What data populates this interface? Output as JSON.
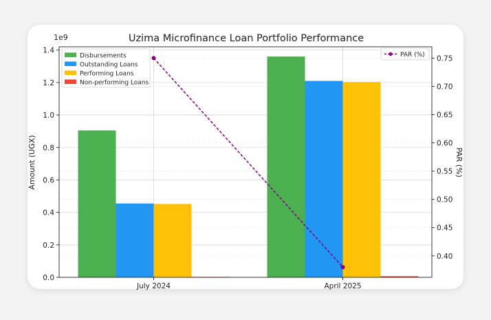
{
  "chart_data": {
    "type": "bar",
    "title": "Uzima Microfinance Loan Portfolio Performance",
    "categories": [
      "July 2024",
      "April 2025"
    ],
    "left_axis": {
      "label": "Amount (UGX)",
      "exponent_label": "1e9",
      "range": [
        0,
        1.42
      ],
      "ticks": [
        0.0,
        0.2,
        0.4,
        0.6,
        0.8,
        1.0,
        1.2,
        1.4
      ],
      "tick_labels": [
        "0.0",
        "0.2",
        "0.4",
        "0.6",
        "0.8",
        "1.0",
        "1.2",
        "1.4"
      ]
    },
    "right_axis": {
      "label": "PAR (%)",
      "range": [
        0.362,
        0.77
      ],
      "ticks": [
        0.4,
        0.45,
        0.5,
        0.55,
        0.6,
        0.65,
        0.7,
        0.75
      ],
      "tick_labels": [
        "0.40",
        "0.45",
        "0.50",
        "0.55",
        "0.60",
        "0.65",
        "0.70",
        "0.75"
      ]
    },
    "series": [
      {
        "name": "Disbursements",
        "color": "#4caf50",
        "values": [
          0.905,
          1.36
        ]
      },
      {
        "name": "Outstanding Loans",
        "color": "#2196f3",
        "values": [
          0.455,
          1.21
        ]
      },
      {
        "name": "Performing Loans",
        "color": "#ffc107",
        "values": [
          0.452,
          1.203
        ]
      },
      {
        "name": "Non-performing Loans",
        "color": "#f44336",
        "values": [
          0.003,
          0.007
        ]
      }
    ],
    "line_series": {
      "name": "PAR (%)",
      "color": "#800080",
      "values": [
        0.75,
        0.38
      ],
      "style": "dashed"
    },
    "grid": true,
    "legend_position": "upper-left",
    "line_legend_position": "upper-right"
  }
}
